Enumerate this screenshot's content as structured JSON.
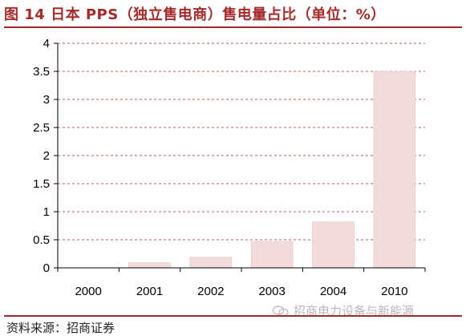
{
  "figure": {
    "title": "图 14 日本 PPS（独立售电商）售电量占比（单位：%）",
    "source": "资料来源：招商证券",
    "watermark": "招商电力设备与新能源"
  },
  "colors": {
    "title": "#a52a2a",
    "bar": "#f2dcdb",
    "bar_stroke": "#e6c4c3",
    "grid": "#a52a2a",
    "axis": "#000000"
  },
  "chart_data": {
    "type": "bar",
    "title": "图 14 日本 PPS（独立售电商）售电量占比（单位：%）",
    "xlabel": "",
    "ylabel": "",
    "categories": [
      "2000",
      "2001",
      "2002",
      "2003",
      "2004",
      "2010"
    ],
    "series": [
      {
        "values": [
          0,
          0.09,
          0.19,
          0.47,
          0.82,
          3.5
        ]
      }
    ],
    "ylim": [
      0,
      4
    ],
    "yticks": [
      0,
      0.5,
      1,
      1.5,
      2,
      2.5,
      3,
      3.5,
      4
    ],
    "ytick_labels": [
      "0",
      "0.5",
      "1",
      "1.5",
      "2",
      "2.5",
      "3",
      "3.5",
      "4"
    ],
    "grid": true,
    "grid_style": "dashed-horizontal",
    "legend": "none"
  }
}
